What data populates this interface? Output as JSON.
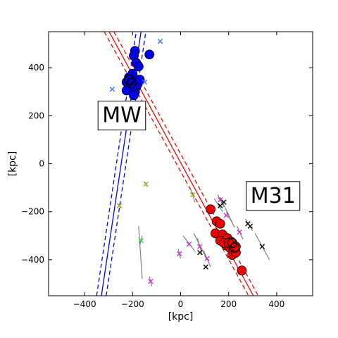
{
  "chart_data": {
    "type": "scatter",
    "title": "",
    "xlabel": "[kpc]",
    "ylabel": "[kpc]",
    "xlim": [
      -550,
      550
    ],
    "ylim": [
      -550,
      550
    ],
    "x_ticks": [
      -400,
      -200,
      0,
      200,
      400
    ],
    "y_ticks": [
      -400,
      -200,
      0,
      200,
      400
    ],
    "grid": false,
    "legend": "none",
    "annotations": [
      {
        "text": "MW",
        "x": -245,
        "y": 205
      },
      {
        "text": "M31",
        "x": 385,
        "y": -130
      }
    ],
    "colors": {
      "mw": "#0000ee",
      "m31": "#ee0000",
      "mw_line": "#0000ff",
      "m31_line": "#ff0000",
      "error_bar": "#808080"
    },
    "lines": [
      {
        "name": "mw-plane",
        "color": "#0000ff",
        "style": "solid",
        "points": [
          [
            -330,
            -550
          ],
          [
            -165,
            550
          ]
        ]
      },
      {
        "name": "mw-plane-upper",
        "color": "#0000ff",
        "style": "dashed",
        "points": [
          [
            -350,
            -550
          ],
          [
            -185,
            550
          ]
        ]
      },
      {
        "name": "mw-plane-lower",
        "color": "#0000ff",
        "style": "dashed",
        "points": [
          [
            -310,
            -550
          ],
          [
            -145,
            550
          ]
        ]
      },
      {
        "name": "m31-plane",
        "color": "#ff0000",
        "style": "solid",
        "points": [
          [
            -298,
            550
          ],
          [
            303,
            -550
          ]
        ]
      },
      {
        "name": "m31-plane-upper",
        "color": "#ff0000",
        "style": "dashed",
        "points": [
          [
            -278,
            550
          ],
          [
            323,
            -550
          ]
        ]
      },
      {
        "name": "m31-plane-lower",
        "color": "#ff0000",
        "style": "dashed",
        "points": [
          [
            -318,
            550
          ],
          [
            283,
            -550
          ]
        ]
      }
    ],
    "series": [
      {
        "marker": "circle",
        "color": "#0000ee",
        "points": [
          [
            -190,
            470
          ],
          [
            -195,
            450
          ],
          [
            -130,
            455
          ],
          [
            -185,
            420
          ],
          [
            -175,
            405
          ],
          [
            -200,
            375
          ],
          [
            -215,
            360
          ],
          [
            -225,
            340
          ],
          [
            -215,
            325
          ],
          [
            -200,
            340
          ],
          [
            -185,
            320
          ],
          [
            -190,
            300
          ],
          [
            -180,
            330
          ],
          [
            -200,
            310
          ],
          [
            -225,
            305
          ],
          [
            -170,
            350
          ],
          [
            -195,
            285
          ],
          [
            -210,
            180
          ]
        ]
      },
      {
        "marker": "circle-open",
        "color": "#000000",
        "points": [
          [
            -215,
            350
          ],
          [
            -205,
            335
          ]
        ]
      },
      {
        "marker": "circle",
        "color": "#ee0000",
        "points": [
          [
            125,
            -190
          ],
          [
            150,
            -240
          ],
          [
            165,
            -250
          ],
          [
            145,
            -290
          ],
          [
            175,
            -295
          ],
          [
            165,
            -320
          ],
          [
            195,
            -310
          ],
          [
            210,
            -325
          ],
          [
            190,
            -340
          ],
          [
            205,
            -350
          ],
          [
            220,
            -355
          ],
          [
            215,
            -380
          ],
          [
            230,
            -370
          ],
          [
            255,
            -445
          ],
          [
            180,
            -330
          ],
          [
            200,
            -330
          ],
          [
            230,
            -345
          ]
        ]
      },
      {
        "marker": "circle-open",
        "color": "#000000",
        "points": [
          [
            215,
            -330
          ],
          [
            225,
            -350
          ]
        ]
      },
      {
        "marker": "x",
        "color": "#3377ff",
        "points": [
          [
            -285,
            310
          ],
          [
            -85,
            510
          ],
          [
            -150,
            340
          ]
        ]
      },
      {
        "marker": "x",
        "color": "#aaaa22",
        "points": [
          [
            -145,
            -85
          ],
          [
            -255,
            -175
          ],
          [
            50,
            -130
          ]
        ]
      },
      {
        "marker": "x",
        "color": "#33cc33",
        "points": [
          [
            -165,
            -320
          ]
        ]
      },
      {
        "marker": "x",
        "color": "#cc33cc",
        "points": [
          [
            -125,
            -490
          ],
          [
            -5,
            -375
          ],
          [
            35,
            -335
          ],
          [
            80,
            -345
          ],
          [
            110,
            -395
          ],
          [
            165,
            -150
          ],
          [
            190,
            -215
          ],
          [
            245,
            -285
          ]
        ]
      },
      {
        "marker": "x",
        "color": "#000000",
        "points": [
          [
            80,
            -370
          ],
          [
            105,
            -430
          ],
          [
            165,
            -175
          ],
          [
            180,
            -160
          ],
          [
            280,
            -250
          ],
          [
            290,
            -260
          ],
          [
            340,
            -345
          ]
        ]
      }
    ],
    "error_bars": [
      [
        [
          -175,
          -260
        ],
        [
          -160,
          -480
        ]
      ],
      [
        [
          -130,
          -470
        ],
        [
          -120,
          -510
        ]
      ],
      [
        [
          -10,
          -355
        ],
        [
          0,
          -395
        ]
      ],
      [
        [
          10,
          -300
        ],
        [
          60,
          -365
        ]
      ],
      [
        [
          70,
          -310
        ],
        [
          90,
          -380
        ]
      ],
      [
        [
          95,
          -360
        ],
        [
          125,
          -430
        ]
      ],
      [
        [
          55,
          -290
        ],
        [
          110,
          -400
        ]
      ],
      [
        [
          155,
          -130
        ],
        [
          180,
          -180
        ]
      ],
      [
        [
          165,
          -140
        ],
        [
          215,
          -245
        ]
      ],
      [
        [
          190,
          -200
        ],
        [
          225,
          -265
        ]
      ],
      [
        [
          235,
          -260
        ],
        [
          260,
          -315
        ]
      ],
      [
        [
          270,
          -230
        ],
        [
          300,
          -280
        ]
      ],
      [
        [
          310,
          -290
        ],
        [
          370,
          -400
        ]
      ],
      [
        [
          140,
          -145
        ],
        [
          175,
          -200
        ]
      ],
      [
        [
          40,
          -100
        ],
        [
          60,
          -160
        ]
      ],
      [
        [
          -150,
          -75
        ],
        [
          -140,
          -95
        ]
      ],
      [
        [
          -262,
          -165
        ],
        [
          -250,
          -185
        ]
      ],
      [
        [
          -160,
          -300
        ],
        [
          -170,
          -340
        ]
      ]
    ]
  }
}
